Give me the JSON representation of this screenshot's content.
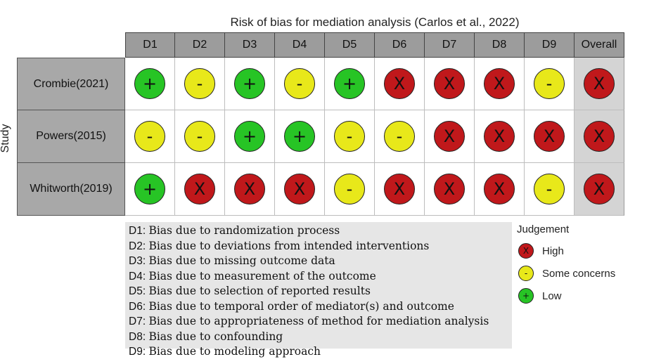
{
  "chart_data": {
    "type": "table",
    "title": "Risk of bias for mediation analysis (Carlos et al., 2022)",
    "ylabel": "Study",
    "columns": [
      "D1",
      "D2",
      "D3",
      "D4",
      "D5",
      "D6",
      "D7",
      "D8",
      "D9",
      "Overall"
    ],
    "rows": [
      {
        "study": "Crombie(2021)",
        "judgements": [
          "Low",
          "Some concerns",
          "Low",
          "Some concerns",
          "Low",
          "High",
          "High",
          "High",
          "Some concerns",
          "High"
        ]
      },
      {
        "study": "Powers(2015)",
        "judgements": [
          "Some concerns",
          "Some concerns",
          "Low",
          "Low",
          "Some concerns",
          "Some concerns",
          "High",
          "High",
          "High",
          "High"
        ]
      },
      {
        "study": "Whitworth(2019)",
        "judgements": [
          "Low",
          "High",
          "High",
          "High",
          "Some concerns",
          "High",
          "High",
          "High",
          "Some concerns",
          "High"
        ]
      }
    ],
    "definitions": [
      {
        "code": "D1",
        "text": "Bias due to randomization process"
      },
      {
        "code": "D2",
        "text": "Bias due to deviations from intended interventions"
      },
      {
        "code": "D3",
        "text": "Bias due to missing outcome data"
      },
      {
        "code": "D4",
        "text": "Bias due to measurement of the outcome"
      },
      {
        "code": "D5",
        "text": "Bias due to selection of reported results"
      },
      {
        "code": "D6",
        "text": "Bias due to temporal order of mediator(s) and outcome"
      },
      {
        "code": "D7",
        "text": "Bias due to appropriateness of method for mediation analysis"
      },
      {
        "code": "D8",
        "text": "Bias due to confounding"
      },
      {
        "code": "D9",
        "text": "Bias due to modeling approach"
      }
    ],
    "legend": {
      "title": "Judgement",
      "items": [
        {
          "label": "High",
          "symbol": "X",
          "color": "#c0181b"
        },
        {
          "label": "Some concerns",
          "symbol": "-",
          "color": "#e8e81a"
        },
        {
          "label": "Low",
          "symbol": "+",
          "color": "#27c425"
        }
      ]
    }
  }
}
